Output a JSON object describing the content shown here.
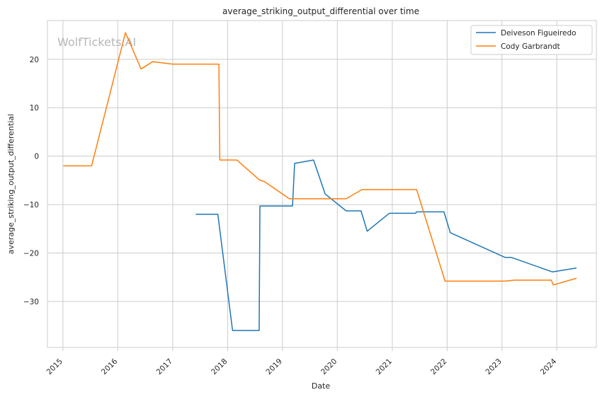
{
  "chart_data": {
    "type": "line",
    "title": "average_striking_output_differential over time",
    "xlabel": "Date",
    "ylabel": "average_striking_output_differential",
    "watermark": "WolfTickets.AI",
    "x_ticks": [
      "2015",
      "2016",
      "2017",
      "2018",
      "2019",
      "2020",
      "2021",
      "2022",
      "2023",
      "2024"
    ],
    "y_ticks": [
      20,
      10,
      0,
      -10,
      -20,
      -30
    ],
    "xlim": [
      "2014-09-20",
      "2024-09-20"
    ],
    "ylim": [
      -39.5,
      28.0
    ],
    "grid": true,
    "legend_position": "top-right",
    "series": [
      {
        "name": "Deiveson Figueiredo",
        "color": "#1f77b4",
        "points": [
          [
            "2017-06-03",
            -12.0
          ],
          [
            "2017-10-28",
            -12.0
          ],
          [
            "2018-02-03",
            -36.0
          ],
          [
            "2018-07-30",
            -36.0
          ],
          [
            "2018-08-04",
            -10.3
          ],
          [
            "2019-03-09",
            -10.3
          ],
          [
            "2019-03-23",
            -1.5
          ],
          [
            "2019-07-27",
            -0.8
          ],
          [
            "2019-10-12",
            -7.8
          ],
          [
            "2020-02-29",
            -11.3
          ],
          [
            "2020-06-07",
            -11.3
          ],
          [
            "2020-07-18",
            -15.5
          ],
          [
            "2020-12-12",
            -11.8
          ],
          [
            "2021-06-05",
            -11.8
          ],
          [
            "2021-06-12",
            -11.5
          ],
          [
            "2021-12-11",
            -11.5
          ],
          [
            "2022-01-22",
            -15.8
          ],
          [
            "2023-01-21",
            -20.9
          ],
          [
            "2023-03-04",
            -20.9
          ],
          [
            "2023-12-02",
            -23.9
          ],
          [
            "2024-05-11",
            -23.1
          ]
        ]
      },
      {
        "name": "Cody Garbrandt",
        "color": "#ff7f0e",
        "points": [
          [
            "2015-01-03",
            -2.0
          ],
          [
            "2015-07-11",
            -2.0
          ],
          [
            "2016-02-21",
            25.5
          ],
          [
            "2016-06-04",
            18.0
          ],
          [
            "2016-08-20",
            19.5
          ],
          [
            "2016-12-30",
            19.0
          ],
          [
            "2017-11-04",
            19.0
          ],
          [
            "2017-11-10",
            -0.8
          ],
          [
            "2018-03-03",
            -0.8
          ],
          [
            "2018-08-04",
            -5.0
          ],
          [
            "2018-09-01",
            -5.2
          ],
          [
            "2019-02-16",
            -8.8
          ],
          [
            "2020-02-29",
            -8.8
          ],
          [
            "2020-06-13",
            -6.9
          ],
          [
            "2021-06-12",
            -6.9
          ],
          [
            "2021-12-18",
            -25.8
          ],
          [
            "2023-01-21",
            -25.8
          ],
          [
            "2023-03-25",
            -25.6
          ],
          [
            "2023-11-25",
            -25.6
          ],
          [
            "2023-12-09",
            -26.6
          ],
          [
            "2024-05-11",
            -25.2
          ]
        ]
      }
    ]
  }
}
